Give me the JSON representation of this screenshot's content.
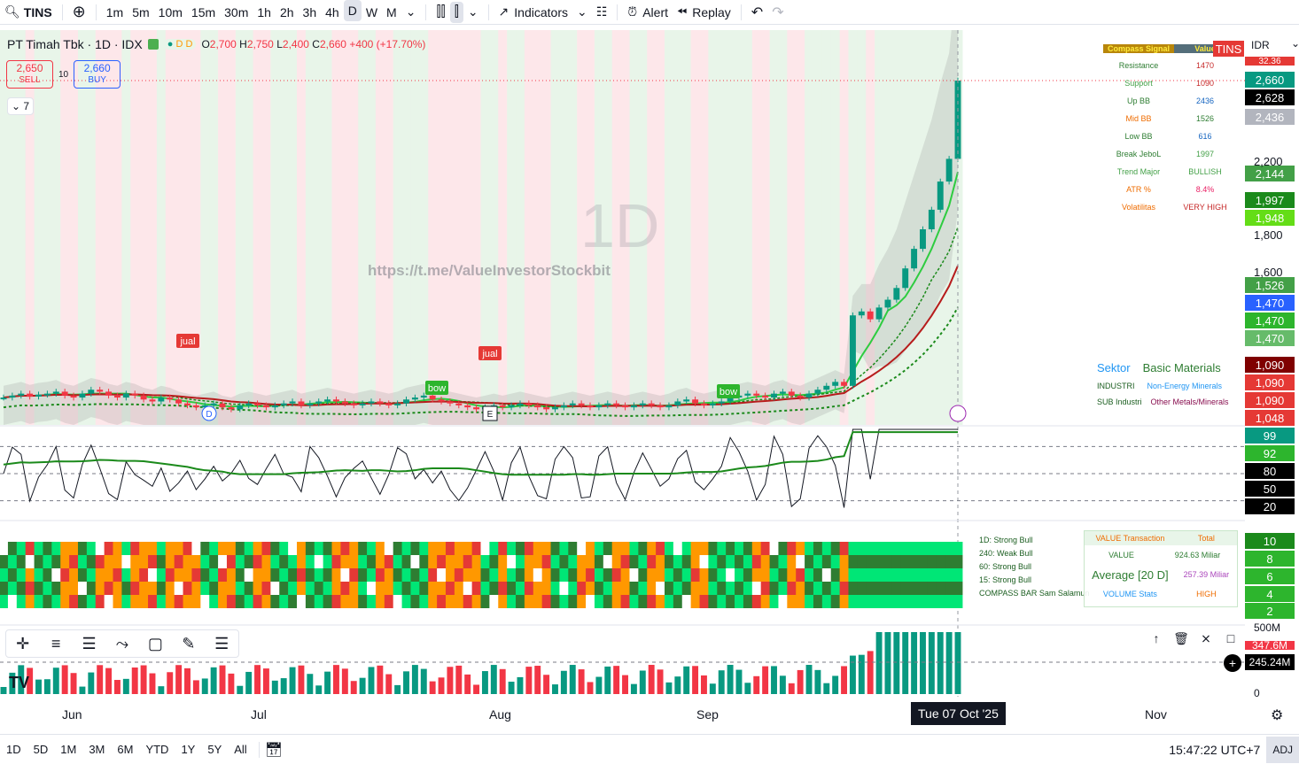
{
  "topbar": {
    "symbol": "TINS",
    "intervals": [
      "1m",
      "5m",
      "10m",
      "15m",
      "30m",
      "1h",
      "2h",
      "3h",
      "4h",
      "D",
      "W",
      "M"
    ],
    "active_interval": "D",
    "indicators": "Indicators",
    "alert": "Alert",
    "replay": "Replay"
  },
  "legend": {
    "title": "PT Timah Tbk · 1D · IDX",
    "o_label": "O",
    "o": "2,700",
    "h_label": "H",
    "h": "2,750",
    "l_label": "L",
    "l": "2,400",
    "c_label": "C",
    "c": "2,660",
    "change": "+400 (+17.70%)",
    "badge_d1": "D",
    "badge_d2": "D"
  },
  "trade": {
    "sell_price": "2,650",
    "sell_label": "SELL",
    "spread": "10",
    "buy_price": "2,660",
    "buy_label": "BUY",
    "collapse_count": "7"
  },
  "watermark": "1D",
  "url": "https://t.me/ValueInvestorStockbit",
  "signals": {
    "header1": "Compass Signal",
    "header2": "Value",
    "badge": "TINS",
    "rows": [
      {
        "k": "Resistance",
        "v": "1470",
        "kc": "#2e7d32",
        "vc": "#c62828"
      },
      {
        "k": "Support",
        "v": "1090",
        "kc": "#43a047",
        "vc": "#c62828"
      },
      {
        "k": "Up BB",
        "v": "2436",
        "kc": "#2e7d32",
        "vc": "#1565c0"
      },
      {
        "k": "Mid BB",
        "v": "1526",
        "kc": "#ef6c00",
        "vc": "#2e7d32"
      },
      {
        "k": "Low BB",
        "v": "616",
        "kc": "#2e7d32",
        "vc": "#1565c0"
      },
      {
        "k": "Break JeboL",
        "v": "1997",
        "kc": "#2e7d32",
        "vc": "#43a047"
      },
      {
        "k": "Trend Major",
        "v": "BULLISH",
        "kc": "#43a047",
        "vc": "#43a047"
      },
      {
        "k": "ATR %",
        "v": "8.4%",
        "kc": "#ef6c00",
        "vc": "#e91e63"
      },
      {
        "k": "Volatilitas",
        "v": "VERY HIGH",
        "kc": "#ef6c00",
        "vc": "#c62828"
      }
    ]
  },
  "sektor": {
    "label": "Sektor",
    "value": "Basic Materials",
    "industri_label": "INDUSTRI",
    "industri": "Non-Energy Minerals",
    "sub_label": "SUB Industri",
    "sub": "Other Metals/Minerals"
  },
  "markers": {
    "jual": "jual",
    "bow": "bow",
    "d": "D",
    "e": "E"
  },
  "price_axis": {
    "currency": "IDR",
    "ticks": [
      "2,200",
      "1,800",
      "1,600"
    ],
    "labels": [
      {
        "t": "2,660",
        "bg": "#089981"
      },
      {
        "t": "2,628",
        "bg": "#000000"
      },
      {
        "t": "2,436",
        "bg": "#b2b5be"
      },
      {
        "t": "2,144",
        "bg": "#43a047"
      },
      {
        "t": "1,997",
        "bg": "#1b8a1b"
      },
      {
        "t": "1,948",
        "bg": "#64dd17"
      },
      {
        "t": "1,526",
        "bg": "#43a047"
      },
      {
        "t": "1,470",
        "bg": "#2962ff"
      },
      {
        "t": "1,470",
        "bg": "#2db52d"
      },
      {
        "t": "1,470",
        "bg": "#66bb6a"
      },
      {
        "t": "1,090",
        "bg": "#7f0000"
      },
      {
        "t": "1,090",
        "bg": "#e53935"
      },
      {
        "t": "1,090",
        "bg": "#e53935"
      },
      {
        "t": "1,048",
        "bg": "#e53935"
      }
    ],
    "top_partial": "32.36"
  },
  "osc_axis": [
    {
      "t": "99",
      "bg": "#089981"
    },
    {
      "t": "92",
      "bg": "#2db52d"
    },
    {
      "t": "80",
      "bg": "#000000"
    },
    {
      "t": "50",
      "bg": "#000000"
    },
    {
      "t": "20",
      "bg": "#000000"
    }
  ],
  "heat_axis": [
    {
      "t": "10",
      "bg": "#1b8a1b"
    },
    {
      "t": "8",
      "bg": "#2db52d"
    },
    {
      "t": "6",
      "bg": "#2db52d"
    },
    {
      "t": "4",
      "bg": "#2db52d"
    },
    {
      "t": "2",
      "bg": "#2db52d"
    }
  ],
  "vol_axis": {
    "top": "500M",
    "l1": "347.6M",
    "l2": "245.24M",
    "zero": "0"
  },
  "mtf": [
    "1D: Strong Bull",
    "240: Weak Bull",
    "60: Strong Bull",
    "15: Strong Bull",
    "COMPASS BAR Sam Salamun"
  ],
  "valbox": {
    "h1": "VALUE Transaction",
    "h2": "Total",
    "value_label": "VALUE",
    "value": "924.63 Miliar",
    "avg_label": "Average [20 D]",
    "avg": "257.39 Miliar",
    "vol_label": "VOLUME Stats",
    "vol": "HIGH"
  },
  "time_axis": {
    "labels": [
      "Jun",
      "Jul",
      "Aug",
      "Sep",
      "Nov"
    ],
    "current": "Tue 07 Oct '25"
  },
  "bottombar": {
    "ranges": [
      "1D",
      "5D",
      "1M",
      "3M",
      "6M",
      "YTD",
      "1Y",
      "5Y",
      "All"
    ],
    "clock": "15:47:22 UTC+7",
    "adj": "ADJ"
  },
  "chart_data": {
    "type": "candlestick",
    "symbol": "TINS",
    "interval": "1D",
    "last": {
      "open": 2700,
      "high": 2750,
      "low": 2400,
      "close": 2660,
      "change": 400,
      "change_pct": 17.7
    },
    "closes": [
      1040,
      1050,
      1060,
      1045,
      1055,
      1060,
      1070,
      1050,
      1040,
      1060,
      1080,
      1070,
      1050,
      1040,
      1060,
      1050,
      1030,
      1020,
      1040,
      1030,
      1010,
      1000,
      990,
      1000,
      1010,
      990,
      980,
      1000,
      1010,
      1000,
      990,
      1000,
      1010,
      1020,
      1000,
      1010,
      1020,
      1030,
      1020,
      1010,
      1000,
      1010,
      1020,
      1010,
      1000,
      1010,
      1030,
      1040,
      1050,
      1030,
      1020,
      1010,
      1000,
      990,
      980,
      990,
      1000,
      990,
      1000,
      1010,
      1000,
      990,
      980,
      990,
      1000,
      1010,
      1000,
      990,
      1000,
      1010,
      1000,
      990,
      1000,
      1010,
      1000,
      990,
      1000,
      1020,
      1030,
      1010,
      1000,
      1010,
      1020,
      1040,
      1050,
      1060,
      1050,
      1040,
      1060,
      1070,
      1050,
      1040,
      1060,
      1080,
      1100,
      1120,
      1100,
      1460,
      1480,
      1440,
      1500,
      1540,
      1600,
      1700,
      1800,
      1900,
      2000,
      2144,
      2260,
      2660
    ]
  }
}
